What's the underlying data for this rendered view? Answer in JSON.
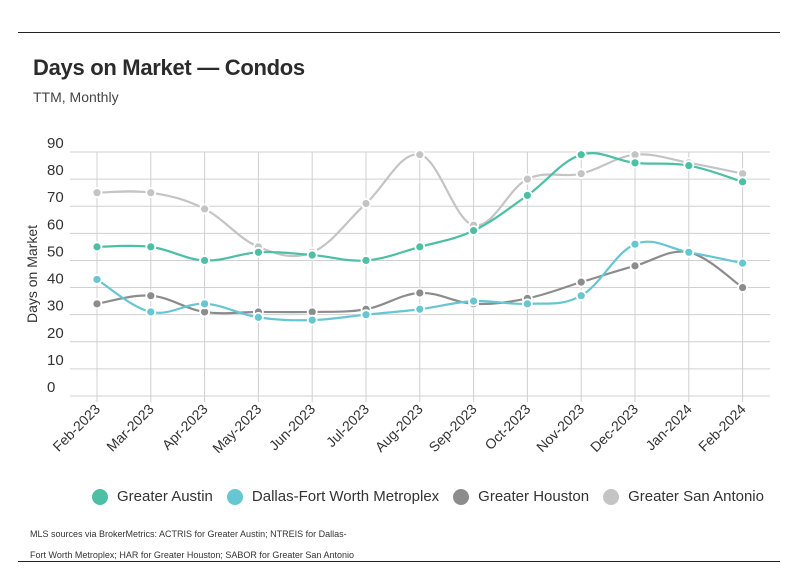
{
  "header": {
    "title": "Days on Market — Condos",
    "subtitle": "TTM, Monthly"
  },
  "source_note": "MLS sources via BrokerMetrics: ACTRIS for Greater Austin; NTREIS for Dallas-Fort Worth Metroplex; HAR for Greater Houston; SABOR for Greater San Antonio",
  "chart_data": {
    "type": "line",
    "title": "Days on Market — Condos",
    "subtitle": "TTM, Monthly",
    "xlabel": "",
    "ylabel": "Days on Market",
    "ylim": [
      0,
      90
    ],
    "yticks": [
      0,
      10,
      20,
      30,
      40,
      50,
      60,
      70,
      80,
      90
    ],
    "grid": true,
    "legend_position": "bottom",
    "categories": [
      "Feb-2023",
      "Mar-2023",
      "Apr-2023",
      "May-2023",
      "Jun-2023",
      "Jul-2023",
      "Aug-2023",
      "Sep-2023",
      "Oct-2023",
      "Nov-2023",
      "Dec-2023",
      "Jan-2024",
      "Feb-2024"
    ],
    "series": [
      {
        "name": "Greater Austin",
        "color": "#4dbfa5",
        "values": [
          55,
          55,
          50,
          53,
          52,
          50,
          55,
          61,
          74,
          89,
          86,
          85,
          79
        ]
      },
      {
        "name": "Dallas-Fort Worth Metroplex",
        "color": "#66c6d2",
        "values": [
          43,
          31,
          34,
          29,
          28,
          30,
          32,
          35,
          34,
          37,
          56,
          53,
          49
        ]
      },
      {
        "name": "Greater Houston",
        "color": "#8c8c8c",
        "values": [
          34,
          37,
          31,
          31,
          31,
          32,
          38,
          34,
          36,
          42,
          48,
          53,
          40
        ]
      },
      {
        "name": "Greater San Antonio",
        "color": "#c4c4c4",
        "values": [
          75,
          75,
          69,
          55,
          53,
          71,
          89,
          63,
          80,
          82,
          89,
          86,
          82
        ]
      }
    ]
  }
}
